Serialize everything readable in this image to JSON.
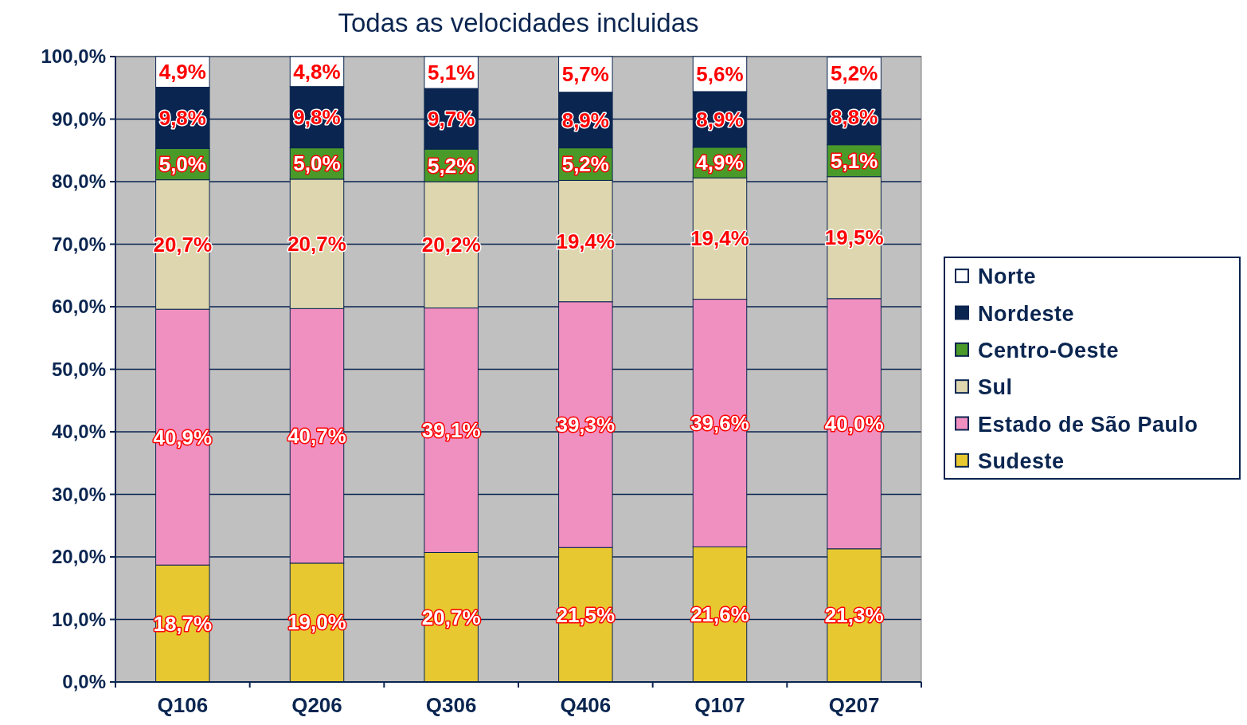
{
  "chart_data": {
    "type": "bar",
    "title": "Todas as velocidades incluidas",
    "stacked": true,
    "categories": [
      "Q106",
      "Q206",
      "Q306",
      "Q406",
      "Q107",
      "Q207"
    ],
    "series": [
      {
        "name": "Sudeste",
        "color": "#e8c830",
        "values": [
          18.7,
          19.0,
          20.7,
          21.5,
          21.6,
          21.3
        ],
        "value_labels": [
          "18,7%",
          "19,0%",
          "20,7%",
          "21,5%",
          "21,6%",
          "21,3%"
        ]
      },
      {
        "name": "Estado de São Paulo",
        "color": "#f090c0",
        "values": [
          40.9,
          40.7,
          39.1,
          39.3,
          39.6,
          40.0
        ],
        "value_labels": [
          "40,9%",
          "40,7%",
          "39,1%",
          "39,3%",
          "39,6%",
          "40,0%"
        ]
      },
      {
        "name": "Sul",
        "color": "#ddd6ae",
        "values": [
          20.7,
          20.7,
          20.2,
          19.4,
          19.4,
          19.5
        ],
        "value_labels": [
          "20,7%",
          "20,7%",
          "20,2%",
          "19,4%",
          "19,4%",
          "19,5%"
        ]
      },
      {
        "name": "Centro-Oeste",
        "color": "#4a9a2a",
        "values": [
          5.0,
          5.0,
          5.2,
          5.2,
          4.9,
          5.1
        ],
        "value_labels": [
          "5,0%",
          "5,0%",
          "5,2%",
          "5,2%",
          "4,9%",
          "5,1%"
        ]
      },
      {
        "name": "Nordeste",
        "color": "#0a2550",
        "values": [
          9.8,
          9.8,
          9.7,
          8.9,
          8.9,
          8.8
        ],
        "value_labels": [
          "9,8%",
          "9,8%",
          "9,7%",
          "8,9%",
          "8,9%",
          "8,8%"
        ]
      },
      {
        "name": "Norte",
        "color": "#ffffff",
        "values": [
          4.9,
          4.8,
          5.1,
          5.7,
          5.6,
          5.2
        ],
        "value_labels": [
          "4,9%",
          "4,8%",
          "5,1%",
          "5,7%",
          "5,6%",
          "5,2%"
        ]
      }
    ],
    "ylim": [
      0,
      100
    ],
    "yticks": [
      {
        "value": 0,
        "label": "0,0%"
      },
      {
        "value": 10,
        "label": "10,0%"
      },
      {
        "value": 20,
        "label": "20,0%"
      },
      {
        "value": 30,
        "label": "30,0%"
      },
      {
        "value": 40,
        "label": "40,0%"
      },
      {
        "value": 50,
        "label": "50,0%"
      },
      {
        "value": 60,
        "label": "60,0%"
      },
      {
        "value": 70,
        "label": "70,0%"
      },
      {
        "value": 80,
        "label": "80,0%"
      },
      {
        "value": 90,
        "label": "90,0%"
      },
      {
        "value": 100,
        "label": "100,0%"
      }
    ],
    "grid": "y",
    "legend": "right"
  }
}
